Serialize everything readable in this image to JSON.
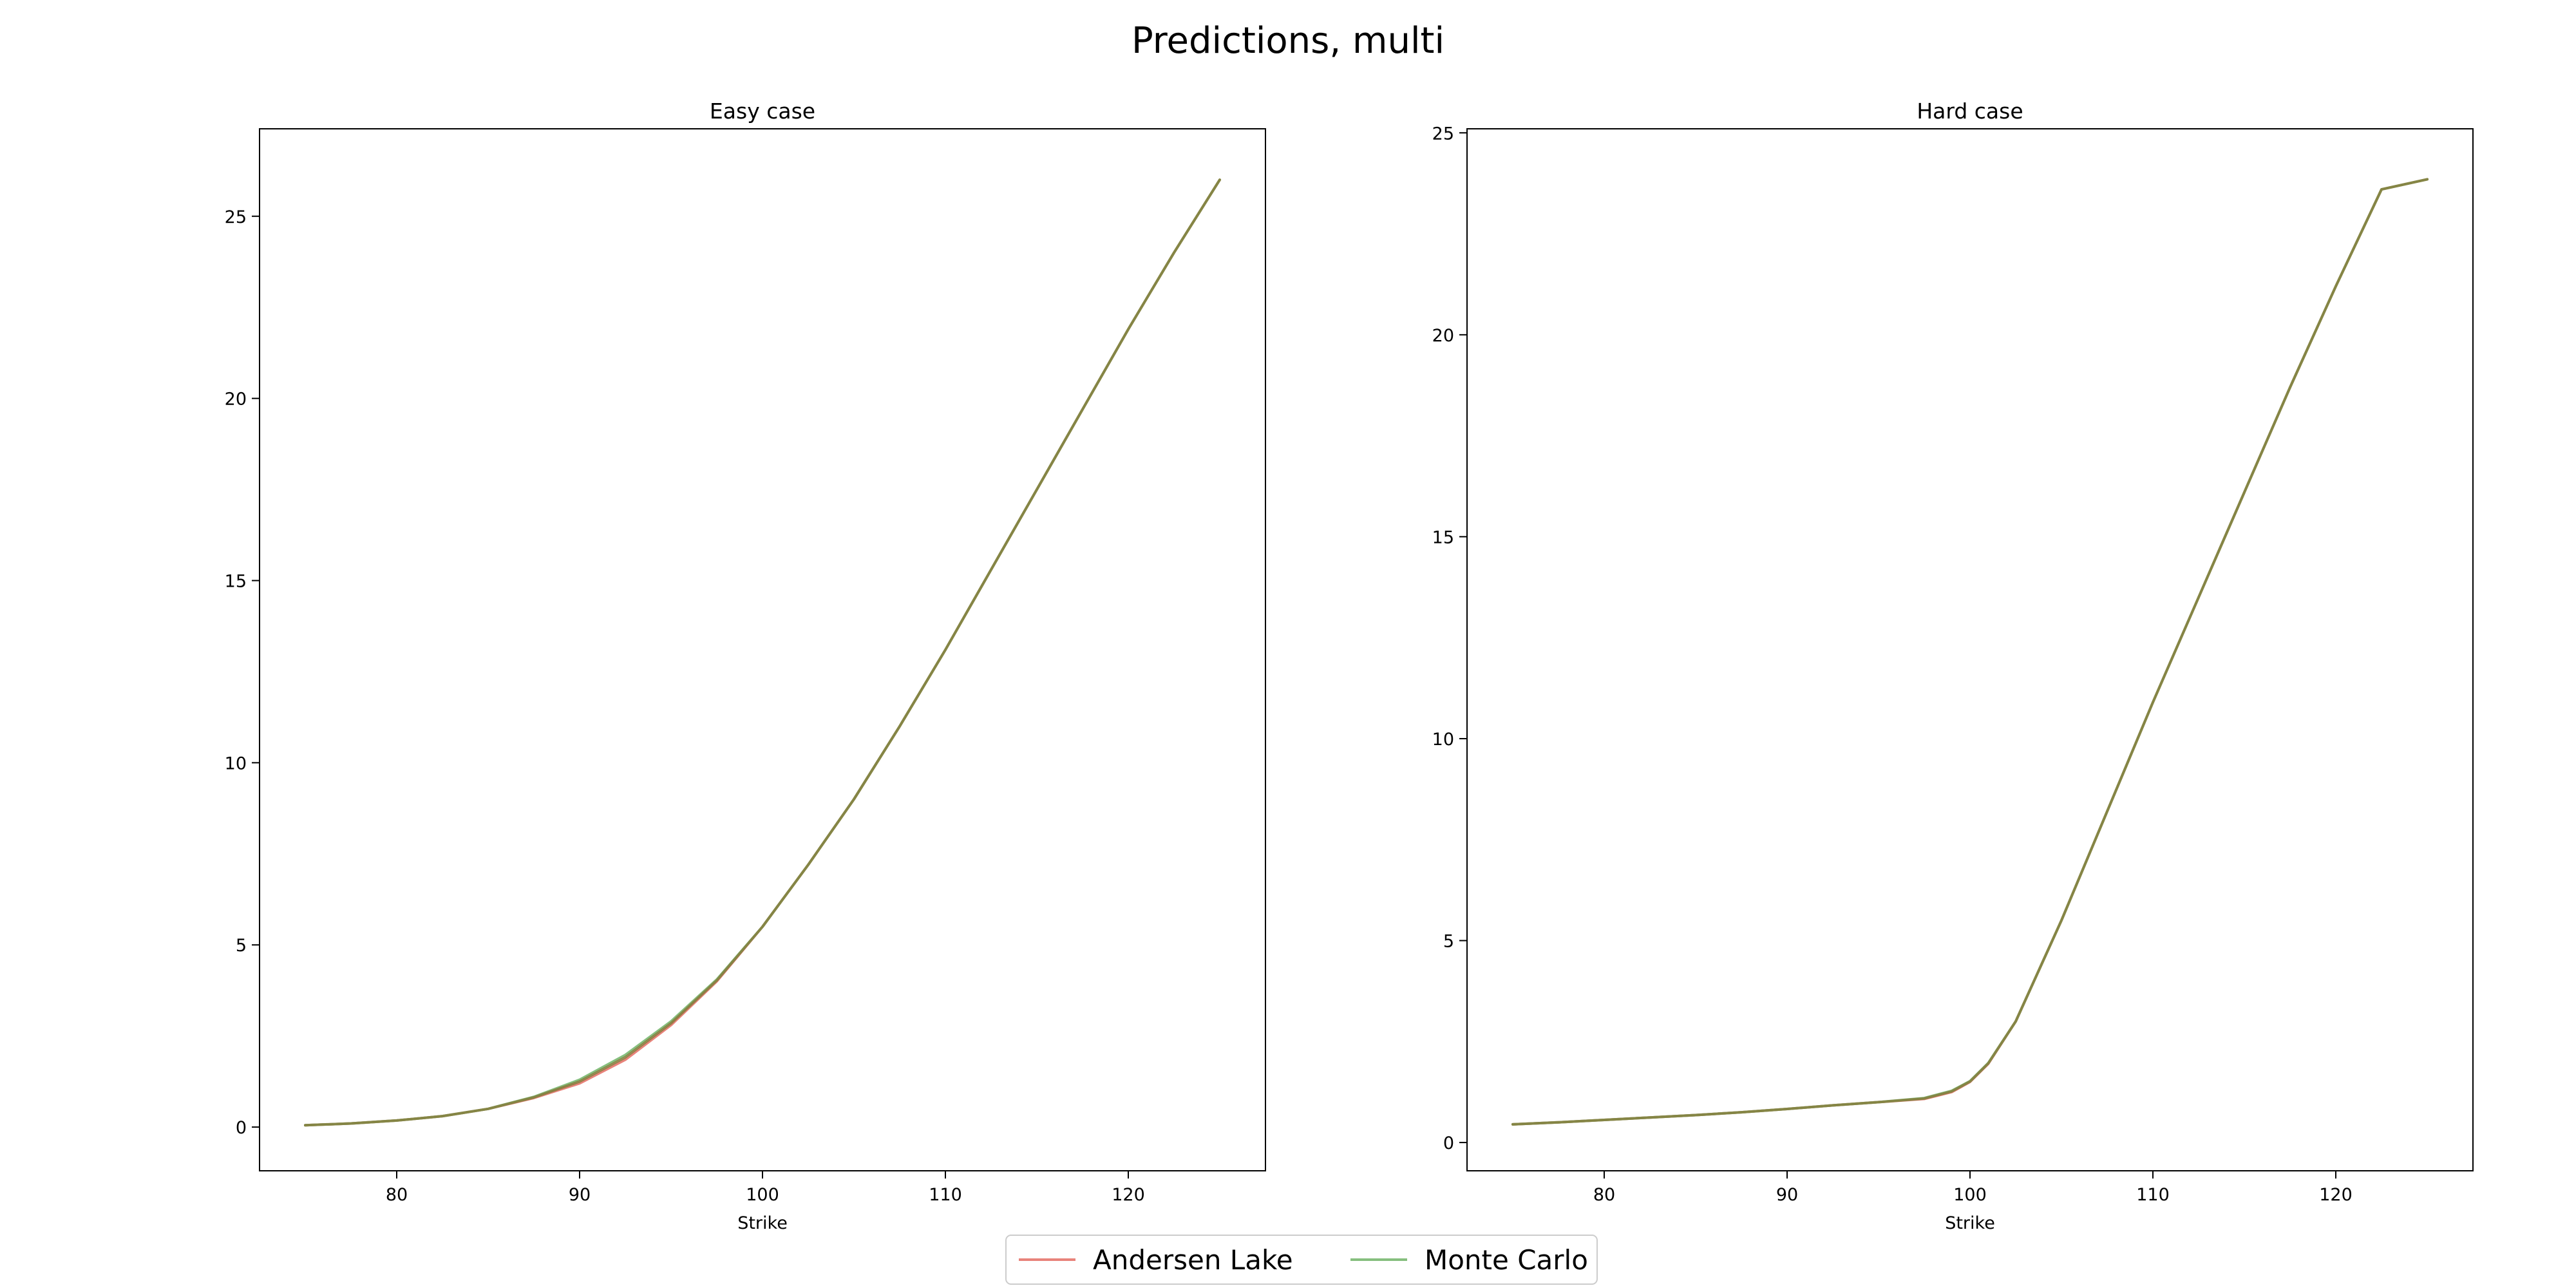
{
  "figure": {
    "title": "Predictions, multi"
  },
  "legend": {
    "placement": "bottom-center",
    "items": [
      {
        "label": "Andersen Lake",
        "color": "#e8837b"
      },
      {
        "label": "Monte Carlo",
        "color": "#86bf7e"
      }
    ],
    "overlap_color": "#857a3b"
  },
  "chart_data": [
    {
      "type": "line",
      "title": "Easy case",
      "xlabel": "Strike",
      "ylabel": "",
      "xlim": [
        72.5,
        127.5
      ],
      "ylim": [
        -1.2,
        27.4
      ],
      "xticks": [
        80,
        90,
        100,
        110,
        120
      ],
      "yticks": [
        0,
        5,
        10,
        15,
        20,
        25
      ],
      "grid": false,
      "series": [
        {
          "name": "Andersen Lake",
          "x": [
            75,
            77.5,
            80,
            82.5,
            85,
            87.5,
            90,
            92.5,
            95,
            97.5,
            100,
            102.5,
            105,
            107.5,
            110,
            112.5,
            115,
            117.5,
            120,
            122.5,
            125
          ],
          "y": [
            0.05,
            0.1,
            0.18,
            0.3,
            0.5,
            0.8,
            1.2,
            1.85,
            2.8,
            4.0,
            5.5,
            7.2,
            9.0,
            11.0,
            13.1,
            15.3,
            17.5,
            19.7,
            21.9,
            24.0,
            26.0
          ]
        },
        {
          "name": "Monte Carlo",
          "x": [
            75,
            77.5,
            80,
            82.5,
            85,
            87.5,
            90,
            92.5,
            95,
            97.5,
            100,
            102.5,
            105,
            107.5,
            110,
            112.5,
            115,
            117.5,
            120,
            122.5,
            125
          ],
          "y": [
            0.05,
            0.1,
            0.18,
            0.3,
            0.5,
            0.83,
            1.3,
            1.98,
            2.9,
            4.05,
            5.5,
            7.2,
            9.0,
            11.0,
            13.1,
            15.3,
            17.5,
            19.7,
            21.9,
            24.0,
            26.0
          ]
        }
      ]
    },
    {
      "type": "line",
      "title": "Hard case",
      "xlabel": "Strike",
      "ylabel": "",
      "xlim": [
        72.5,
        127.5
      ],
      "ylim": [
        -0.7,
        25.1
      ],
      "xticks": [
        80,
        90,
        100,
        110,
        120
      ],
      "yticks": [
        0,
        5,
        10,
        15,
        20,
        25
      ],
      "grid": false,
      "series": [
        {
          "name": "Andersen Lake",
          "x": [
            75,
            77.5,
            80,
            82.5,
            85,
            87.5,
            90,
            92.5,
            95,
            97.5,
            99,
            100,
            101,
            102.5,
            105,
            107.5,
            110,
            112.5,
            115,
            117.5,
            120,
            122.5,
            125
          ],
          "y": [
            0.45,
            0.5,
            0.56,
            0.62,
            0.68,
            0.75,
            0.83,
            0.92,
            1.0,
            1.08,
            1.25,
            1.5,
            1.95,
            3.0,
            5.5,
            8.2,
            10.9,
            13.5,
            16.1,
            18.7,
            21.2,
            23.6,
            23.85
          ]
        },
        {
          "name": "Monte Carlo",
          "x": [
            75,
            77.5,
            80,
            82.5,
            85,
            87.5,
            90,
            92.5,
            95,
            97.5,
            99,
            100,
            101,
            102.5,
            105,
            107.5,
            110,
            112.5,
            115,
            117.5,
            120,
            122.5,
            125
          ],
          "y": [
            0.45,
            0.5,
            0.56,
            0.62,
            0.68,
            0.75,
            0.83,
            0.92,
            1.0,
            1.1,
            1.28,
            1.52,
            1.97,
            3.0,
            5.5,
            8.2,
            10.9,
            13.5,
            16.1,
            18.7,
            21.2,
            23.6,
            23.85
          ]
        }
      ]
    }
  ]
}
